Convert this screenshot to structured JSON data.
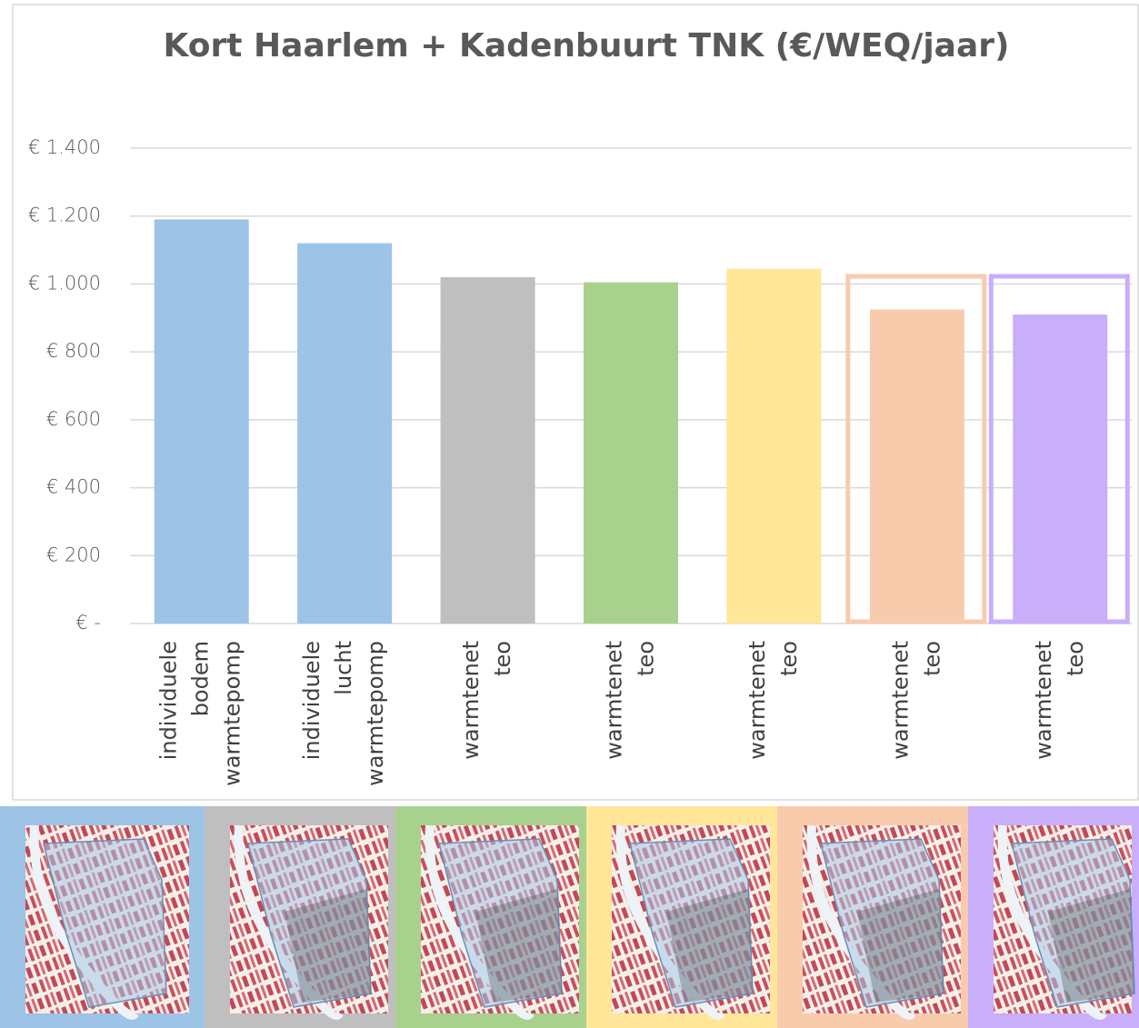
{
  "chart_data": {
    "type": "bar",
    "title": "Kort Haarlem + Kadenbuurt TNK (€/WEQ/jaar)",
    "categories": [
      [
        "individuele",
        "bodem",
        "warmtepomp"
      ],
      [
        "individuele",
        "lucht",
        "warmtepomp"
      ],
      [
        "warmtenet",
        "teo"
      ],
      [
        "warmtenet",
        "teo"
      ],
      [
        "warmtenet",
        "teo"
      ],
      [
        "warmtenet",
        "teo"
      ],
      [
        "warmtenet",
        "teo"
      ]
    ],
    "values": [
      1190,
      1120,
      1020,
      1005,
      1045,
      925,
      910
    ],
    "colors": [
      "#9dc3e6",
      "#9dc3e6",
      "#bfbfbf",
      "#a9d18e",
      "#ffe699",
      "#f8cbad",
      "#c9aef9"
    ],
    "outlined": [
      false,
      false,
      false,
      false,
      false,
      true,
      true
    ],
    "ylim": [
      0,
      1400
    ],
    "yticks": [
      {
        "value": 0,
        "label": "€ -"
      },
      {
        "value": 200,
        "label": "€ 200"
      },
      {
        "value": 400,
        "label": "€ 400"
      },
      {
        "value": 600,
        "label": "€ 600"
      },
      {
        "value": 800,
        "label": "€ 800"
      },
      {
        "value": 1000,
        "label": "€ 1.000"
      },
      {
        "value": 1200,
        "label": "€ 1.200"
      },
      {
        "value": 1400,
        "label": "€ 1.400"
      }
    ],
    "grid": true
  }
}
